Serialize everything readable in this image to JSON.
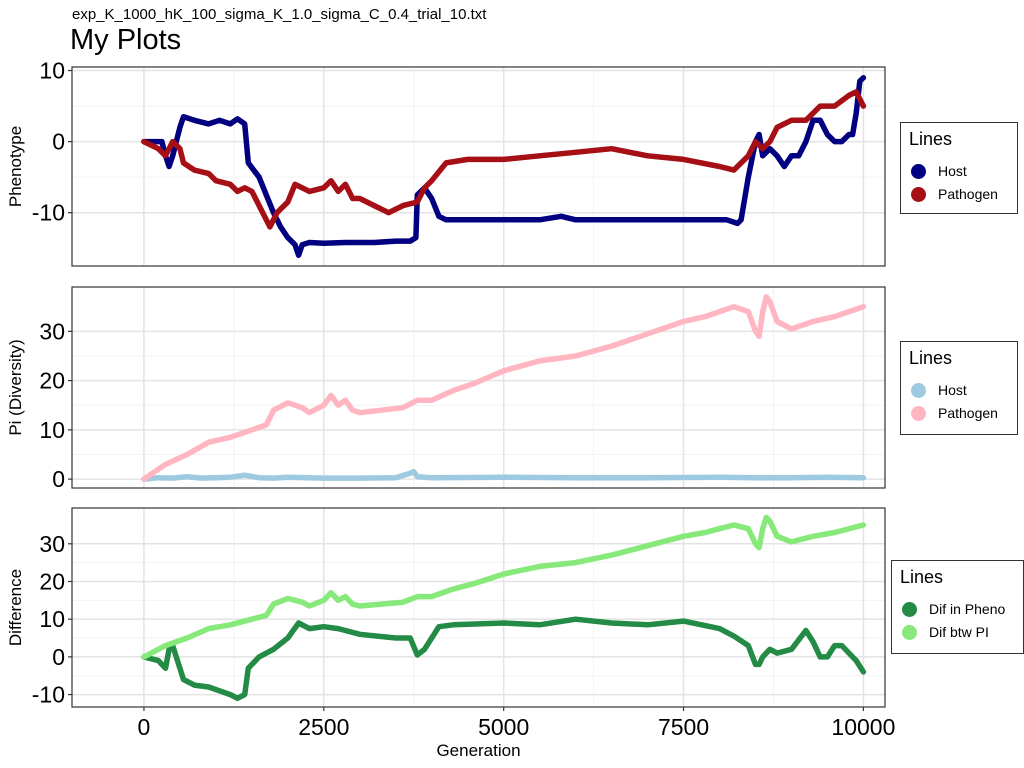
{
  "header": {
    "subtitle": "exp_K_1000_hK_100_sigma_K_1.0_sigma_C_0.4_trial_10.txt",
    "title": "My Plots"
  },
  "chart_data": [
    {
      "type": "line",
      "ylabel": "Phenotype",
      "xlim": [
        -1000,
        10300
      ],
      "ylim": [
        -17.5,
        10.5
      ],
      "yticks": [
        -10,
        0,
        10
      ],
      "grid": true,
      "legend_title": "Lines",
      "series": [
        {
          "name": "Host",
          "color": "#000080",
          "x": [
            0,
            250,
            300,
            350,
            400,
            450,
            500,
            550,
            700,
            900,
            1050,
            1200,
            1300,
            1400,
            1450,
            1600,
            1800,
            1900,
            2000,
            2100,
            2150,
            2200,
            2300,
            2500,
            2800,
            3000,
            3200,
            3500,
            3700,
            3780,
            3800,
            3900,
            4000,
            4100,
            4200,
            5000,
            5500,
            5800,
            6000,
            7000,
            7500,
            8000,
            8100,
            8250,
            8300,
            8400,
            8500,
            8550,
            8600,
            8700,
            8800,
            8900,
            9000,
            9100,
            9200,
            9300,
            9400,
            9500,
            9600,
            9700,
            9800,
            9850,
            9900,
            9950,
            10000
          ],
          "y": [
            0,
            0,
            -2,
            -3.5,
            -2,
            0,
            2,
            3.5,
            3,
            2.5,
            3,
            2.5,
            3.2,
            2.5,
            -3,
            -5,
            -10,
            -12,
            -13.5,
            -14.5,
            -16,
            -14.5,
            -14.2,
            -14.3,
            -14.2,
            -14.2,
            -14.2,
            -14,
            -14,
            -13.5,
            -7.5,
            -6.5,
            -8,
            -10.5,
            -11,
            -11,
            -11,
            -10.5,
            -11,
            -11,
            -11,
            -11,
            -11,
            -11.5,
            -11,
            -5,
            0,
            1,
            -2,
            -1,
            -2,
            -3.5,
            -2,
            -2,
            0,
            3,
            3,
            1,
            0,
            0,
            1,
            1,
            4,
            8.5,
            9
          ]
        },
        {
          "name": "Pathogen",
          "color": "#a50f15",
          "x": [
            0,
            200,
            300,
            400,
            500,
            550,
            700,
            900,
            1000,
            1200,
            1300,
            1400,
            1500,
            1600,
            1700,
            1750,
            1850,
            2000,
            2100,
            2300,
            2500,
            2600,
            2700,
            2800,
            2900,
            3000,
            3200,
            3400,
            3600,
            3800,
            3900,
            4000,
            4200,
            4500,
            5000,
            5500,
            6000,
            6500,
            7000,
            7500,
            8000,
            8200,
            8300,
            8400,
            8500,
            8600,
            8700,
            8800,
            9000,
            9200,
            9400,
            9600,
            9800,
            9900,
            10000
          ],
          "y": [
            0,
            -1,
            -2,
            0,
            -1,
            -3,
            -4,
            -4.5,
            -5.5,
            -6,
            -7,
            -6.5,
            -7,
            -9,
            -11,
            -12,
            -10,
            -8.5,
            -6,
            -7,
            -6.5,
            -5.5,
            -7,
            -6,
            -8,
            -8,
            -9,
            -10,
            -9,
            -8.5,
            -6.5,
            -5.5,
            -3,
            -2.5,
            -2.5,
            -2,
            -1.5,
            -1,
            -2,
            -2.5,
            -3.5,
            -4,
            -3,
            -2,
            0,
            -1,
            0,
            2,
            3,
            3,
            5,
            5,
            6.5,
            7,
            5
          ]
        }
      ]
    },
    {
      "type": "line",
      "ylabel": "Pi (Diversity)",
      "xlim": [
        -1000,
        10300
      ],
      "ylim": [
        -1.8,
        39
      ],
      "yticks": [
        0,
        10,
        20,
        30
      ],
      "grid": true,
      "legend_title": "Lines",
      "series": [
        {
          "name": "Host",
          "color": "#9ecae1",
          "x": [
            0,
            200,
            400,
            600,
            800,
            1000,
            1200,
            1400,
            1600,
            1800,
            2000,
            2500,
            3000,
            3500,
            3700,
            3750,
            3800,
            4000,
            5000,
            6000,
            7000,
            8000,
            8500,
            9000,
            9500,
            10000
          ],
          "y": [
            0,
            0.3,
            0.2,
            0.5,
            0.2,
            0.3,
            0.4,
            0.8,
            0.3,
            0.2,
            0.4,
            0.2,
            0.2,
            0.3,
            1.2,
            1.5,
            0.5,
            0.3,
            0.4,
            0.3,
            0.3,
            0.4,
            0.3,
            0.3,
            0.4,
            0.3
          ]
        },
        {
          "name": "Pathogen",
          "color": "#ffb6c1",
          "x": [
            0,
            300,
            600,
            900,
            1200,
            1500,
            1700,
            1800,
            2000,
            2200,
            2300,
            2500,
            2600,
            2700,
            2800,
            2900,
            3000,
            3300,
            3600,
            3800,
            4000,
            4300,
            4600,
            5000,
            5500,
            6000,
            6500,
            7000,
            7500,
            7800,
            8000,
            8200,
            8400,
            8500,
            8550,
            8600,
            8650,
            8700,
            8800,
            9000,
            9300,
            9600,
            10000
          ],
          "y": [
            0,
            3,
            5,
            7.5,
            8.5,
            10,
            11,
            14,
            15.5,
            14.5,
            13.5,
            15,
            17,
            15,
            16,
            14,
            13.5,
            14,
            14.5,
            16,
            16,
            18,
            19.5,
            22,
            24,
            25,
            27,
            29.5,
            32,
            33,
            34,
            35,
            34,
            30,
            29,
            34,
            37,
            36,
            32,
            30.5,
            32,
            33,
            35
          ]
        }
      ]
    },
    {
      "type": "line",
      "ylabel": "Difference",
      "xlabel": "Generation",
      "xlim": [
        -1000,
        10300
      ],
      "ylim": [
        -13.3,
        39.5
      ],
      "xticks": [
        0,
        2500,
        5000,
        7500,
        10000
      ],
      "yticks": [
        -10,
        0,
        10,
        20,
        30
      ],
      "grid": true,
      "legend_title": "Lines",
      "series": [
        {
          "name": "Dif in Pheno",
          "color": "#238b45",
          "x": [
            0,
            200,
            300,
            350,
            400,
            450,
            550,
            700,
            900,
            1050,
            1200,
            1300,
            1400,
            1450,
            1600,
            1800,
            2000,
            2150,
            2300,
            2500,
            2700,
            3000,
            3500,
            3700,
            3800,
            3900,
            4100,
            4300,
            5000,
            5500,
            6000,
            6500,
            7000,
            7500,
            8000,
            8200,
            8400,
            8500,
            8550,
            8600,
            8700,
            8800,
            9000,
            9200,
            9300,
            9400,
            9500,
            9600,
            9700,
            9800,
            9900,
            10000
          ],
          "y": [
            0,
            -1,
            -3,
            2,
            3,
            0,
            -6,
            -7.5,
            -8,
            -9,
            -10,
            -11,
            -10,
            -3,
            0,
            2,
            5,
            9,
            7.5,
            8,
            7.5,
            6,
            5,
            5,
            0.5,
            2,
            8,
            8.5,
            9,
            8.5,
            10,
            9,
            8.5,
            9.5,
            7.5,
            5.5,
            3,
            -2,
            -2,
            0,
            2,
            1,
            2,
            7,
            4,
            0,
            0,
            3,
            3,
            1,
            -1,
            -4
          ]
        },
        {
          "name": "Dif btw PI",
          "color": "#86e97a",
          "x": [
            0,
            300,
            600,
            900,
            1200,
            1500,
            1700,
            1800,
            2000,
            2200,
            2300,
            2500,
            2600,
            2700,
            2800,
            2900,
            3000,
            3300,
            3600,
            3800,
            4000,
            4300,
            4600,
            5000,
            5500,
            6000,
            6500,
            7000,
            7500,
            7800,
            8000,
            8200,
            8400,
            8500,
            8550,
            8600,
            8650,
            8700,
            8800,
            9000,
            9300,
            9600,
            10000
          ],
          "y": [
            0,
            3,
            5,
            7.5,
            8.5,
            10,
            11,
            14,
            15.5,
            14.5,
            13.5,
            15,
            17,
            15,
            16,
            14,
            13.5,
            14,
            14.5,
            16,
            16,
            18,
            19.5,
            22,
            24,
            25,
            27,
            29.5,
            32,
            33,
            34,
            35,
            34,
            30,
            29,
            34,
            37,
            36,
            32,
            30.5,
            32,
            33,
            35
          ]
        }
      ]
    }
  ]
}
